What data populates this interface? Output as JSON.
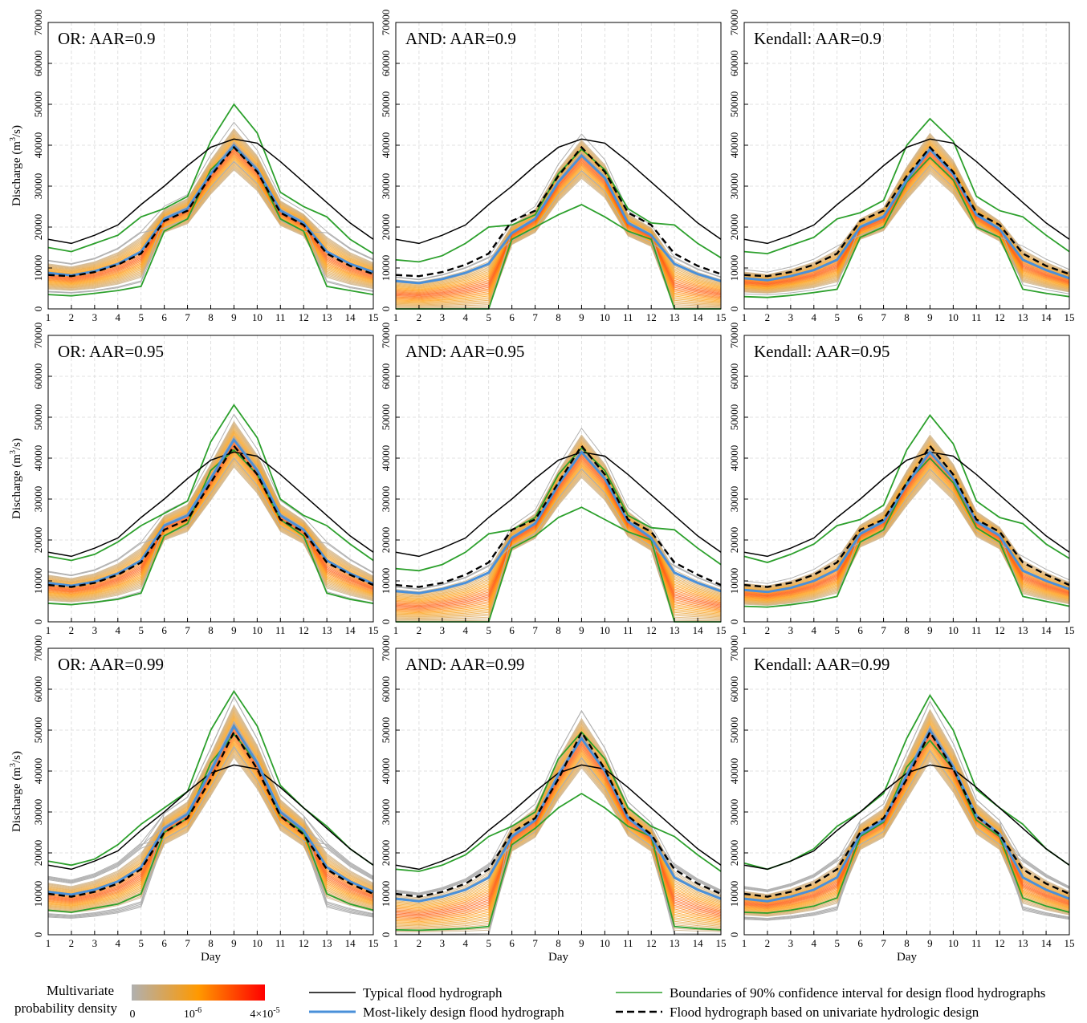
{
  "chart_data": {
    "type": "line",
    "layout": "3x3 grid of line plots",
    "days": [
      1,
      2,
      3,
      4,
      5,
      6,
      7,
      8,
      9,
      10,
      11,
      12,
      13,
      14,
      15
    ],
    "xlabel": "Day",
    "ylabel_main": "Discharge (m",
    "ylabel_sup": "3",
    "ylabel_end": "/s)",
    "ylim": [
      0,
      70000
    ],
    "yticks": [
      0,
      10000,
      20000,
      30000,
      40000,
      50000,
      60000,
      70000
    ],
    "grid": "dashed light gray",
    "typical": [
      17000,
      16000,
      18000,
      20500,
      25500,
      30000,
      35000,
      39500,
      41500,
      40500,
      36000,
      31000,
      26000,
      21000,
      17000
    ],
    "panels": [
      {
        "title": "OR: AAR=0.9",
        "most_likely": [
          8800,
          8200,
          9200,
          11000,
          14000,
          22000,
          24500,
          33000,
          40000,
          34000,
          24000,
          21000,
          14000,
          11000,
          9000
        ],
        "univariate": [
          8300,
          8000,
          9000,
          10800,
          13500,
          21500,
          24000,
          32500,
          39500,
          33500,
          23500,
          20500,
          13500,
          10500,
          8500
        ],
        "ci_upper": [
          15000,
          14000,
          16000,
          18000,
          22500,
          24500,
          27500,
          41000,
          50000,
          43000,
          28500,
          25000,
          22500,
          17000,
          13500
        ],
        "ci_lower": [
          3500,
          3200,
          3800,
          4500,
          5500,
          19000,
          22000,
          34000,
          39500,
          34000,
          22000,
          19000,
          5500,
          4500,
          3500
        ],
        "band_lo": 0.55,
        "band_hi": 1.25,
        "gray_lines": 4
      },
      {
        "title": "AND: AAR=0.9",
        "most_likely": [
          6800,
          6300,
          7300,
          8800,
          11000,
          18500,
          22000,
          31000,
          37500,
          32000,
          21000,
          18000,
          11000,
          8500,
          6800
        ],
        "univariate": [
          8300,
          8000,
          9000,
          10800,
          13500,
          21500,
          24000,
          32500,
          39500,
          33500,
          23500,
          20500,
          13500,
          10500,
          8500
        ],
        "ci_upper": [
          12000,
          11500,
          13000,
          16000,
          20000,
          20500,
          23000,
          33000,
          39000,
          34000,
          24500,
          21000,
          20500,
          16000,
          12500
        ],
        "ci_lower": [
          0,
          0,
          0,
          0,
          0,
          17000,
          20000,
          23000,
          25500,
          22500,
          19000,
          17000,
          0,
          0,
          0
        ],
        "band_lo": 0.0,
        "band_hi": 1.05,
        "gray_lines": 4
      },
      {
        "title": "Kendall: AAR=0.9",
        "most_likely": [
          7500,
          7000,
          8000,
          9500,
          12000,
          20000,
          22500,
          31500,
          39000,
          33000,
          23000,
          19500,
          12000,
          9500,
          7500
        ],
        "univariate": [
          8300,
          8000,
          9000,
          10800,
          13500,
          21500,
          24000,
          32500,
          39500,
          33500,
          23500,
          20500,
          13500,
          10500,
          8500
        ],
        "ci_upper": [
          14000,
          13500,
          15500,
          17500,
          22000,
          23500,
          26500,
          40000,
          46500,
          41000,
          27500,
          24000,
          22500,
          18000,
          14000
        ],
        "ci_lower": [
          3000,
          2800,
          3300,
          4000,
          4800,
          17500,
          20000,
          31000,
          37000,
          31500,
          20000,
          17500,
          4800,
          3800,
          3000
        ],
        "band_lo": 0.55,
        "band_hi": 1.2,
        "gray_lines": 2
      },
      {
        "title": "OR: AAR=0.95",
        "most_likely": [
          9500,
          8800,
          9800,
          11800,
          15000,
          23500,
          26000,
          35000,
          44500,
          37000,
          26000,
          22500,
          15000,
          11800,
          9300
        ],
        "univariate": [
          9000,
          8500,
          9500,
          11500,
          14500,
          22500,
          25000,
          34000,
          43000,
          36000,
          25000,
          22000,
          14500,
          11500,
          9000
        ],
        "ci_upper": [
          16000,
          15000,
          16500,
          19500,
          23500,
          26500,
          29500,
          44000,
          53000,
          45000,
          30000,
          26000,
          23500,
          19000,
          15000
        ],
        "ci_lower": [
          4500,
          4200,
          4800,
          5500,
          7000,
          21000,
          24000,
          37000,
          42000,
          36000,
          25000,
          21000,
          7000,
          5500,
          4500
        ],
        "band_lo": 0.55,
        "band_hi": 1.2,
        "gray_lines": 4
      },
      {
        "title": "AND: AAR=0.95",
        "most_likely": [
          7500,
          7000,
          8000,
          9500,
          12000,
          20500,
          24000,
          33500,
          41500,
          35000,
          24500,
          20500,
          12000,
          9500,
          7500
        ],
        "univariate": [
          9000,
          8500,
          9500,
          11500,
          14500,
          22500,
          25000,
          34000,
          43000,
          36000,
          25000,
          22000,
          14500,
          11500,
          9000
        ],
        "ci_upper": [
          13000,
          12500,
          14000,
          17000,
          21500,
          22500,
          25500,
          36000,
          42500,
          37000,
          26000,
          23000,
          22500,
          18000,
          14000
        ],
        "ci_lower": [
          0,
          0,
          0,
          0,
          0,
          18000,
          21000,
          25500,
          28000,
          25000,
          22000,
          20000,
          0,
          0,
          0
        ],
        "band_lo": 0.0,
        "band_hi": 1.05,
        "gray_lines": 4
      },
      {
        "title": "Kendall: AAR=0.95",
        "most_likely": [
          7800,
          7300,
          8300,
          10000,
          12800,
          21500,
          24500,
          33500,
          41500,
          35000,
          24500,
          21000,
          12500,
          10000,
          8000
        ],
        "univariate": [
          9000,
          8500,
          9500,
          11500,
          14500,
          22500,
          25000,
          34000,
          43000,
          36000,
          25000,
          22000,
          14500,
          11500,
          9000
        ],
        "ci_upper": [
          16000,
          14500,
          16500,
          19000,
          23500,
          25000,
          28500,
          42000,
          50500,
          43500,
          29500,
          25500,
          24000,
          19000,
          15500
        ],
        "ci_lower": [
          3800,
          3600,
          4200,
          5000,
          6200,
          19500,
          22500,
          34000,
          40000,
          34000,
          23000,
          19500,
          6200,
          5000,
          3800
        ],
        "band_lo": 0.55,
        "band_hi": 1.2,
        "gray_lines": 2
      },
      {
        "title": "OR: AAR=0.99",
        "most_likely": [
          10500,
          9800,
          11000,
          13000,
          16500,
          26000,
          29500,
          40000,
          51000,
          42000,
          30000,
          25500,
          16500,
          13000,
          10500
        ],
        "univariate": [
          10000,
          9300,
          10500,
          12500,
          16000,
          25000,
          28500,
          38000,
          49500,
          40500,
          29000,
          24500,
          16000,
          12500,
          10000
        ],
        "ci_upper": [
          18000,
          17000,
          18500,
          22000,
          27000,
          31000,
          35000,
          50000,
          59500,
          51000,
          36500,
          31000,
          26500,
          21000,
          17000
        ],
        "ci_lower": [
          6000,
          5500,
          6500,
          7500,
          10000,
          25000,
          28500,
          42000,
          49000,
          42000,
          29000,
          25000,
          10000,
          7500,
          6000
        ],
        "band_lo": 0.55,
        "band_hi": 1.2,
        "gray_lines": 10
      },
      {
        "title": "AND: AAR=0.99",
        "most_likely": [
          8800,
          8200,
          9300,
          11000,
          14000,
          24000,
          28000,
          39000,
          48000,
          40000,
          28500,
          24000,
          14000,
          11000,
          8800
        ],
        "univariate": [
          10000,
          9300,
          10500,
          12500,
          16000,
          25000,
          28500,
          38000,
          49500,
          40500,
          29000,
          24500,
          16000,
          12500,
          10000
        ],
        "ci_upper": [
          16000,
          15500,
          17000,
          19500,
          24000,
          26500,
          30000,
          43000,
          49500,
          43000,
          31000,
          26500,
          24000,
          19500,
          15500
        ],
        "ci_lower": [
          1200,
          1100,
          1300,
          1500,
          2000,
          22000,
          26000,
          31000,
          34500,
          31000,
          26500,
          24000,
          2000,
          1500,
          1200
        ],
        "band_lo": 0.08,
        "band_hi": 1.1,
        "gray_lines": 8
      },
      {
        "title": "Kendall: AAR=0.99",
        "most_likely": [
          8800,
          8200,
          9300,
          11000,
          14000,
          24500,
          28000,
          39000,
          50000,
          41000,
          29000,
          24500,
          14000,
          11000,
          8800
        ],
        "univariate": [
          10000,
          9300,
          10500,
          12500,
          16000,
          25000,
          28500,
          38000,
          49500,
          40500,
          29000,
          24500,
          16000,
          12500,
          10000
        ],
        "ci_upper": [
          17500,
          16000,
          18000,
          21000,
          26500,
          30000,
          34500,
          48000,
          58500,
          50000,
          35500,
          31000,
          27000,
          21000,
          17000
        ],
        "ci_lower": [
          5500,
          5300,
          6000,
          7000,
          9000,
          24000,
          27500,
          41000,
          47500,
          40500,
          28000,
          24000,
          9000,
          7000,
          5500
        ],
        "band_lo": 0.55,
        "band_hi": 1.2,
        "gray_lines": 8
      }
    ],
    "colors": {
      "typical": "#000000",
      "most_likely": "#4a90d9",
      "univariate": "#000000",
      "ci": "#2ca02c",
      "density_low": "#b0b0b0",
      "density_mid": "#ff9900",
      "density_high": "#ff0000",
      "grid": "#d9d9d9"
    }
  },
  "legend": {
    "colorbar_title_1": "Multivariate",
    "colorbar_title_2": "probability density",
    "colorbar_tick_0": "0",
    "colorbar_tick_1_base": "10",
    "colorbar_tick_1_exp": "-6",
    "colorbar_tick_2_base": "4×10",
    "colorbar_tick_2_exp": "-5",
    "typical": "Typical flood hydrograph",
    "most_likely": "Most-likely design flood hydrograph",
    "ci": "Boundaries of 90% confidence interval for design flood hydrographs",
    "univariate": "Flood hydrograph based on univariate hydrologic design"
  }
}
